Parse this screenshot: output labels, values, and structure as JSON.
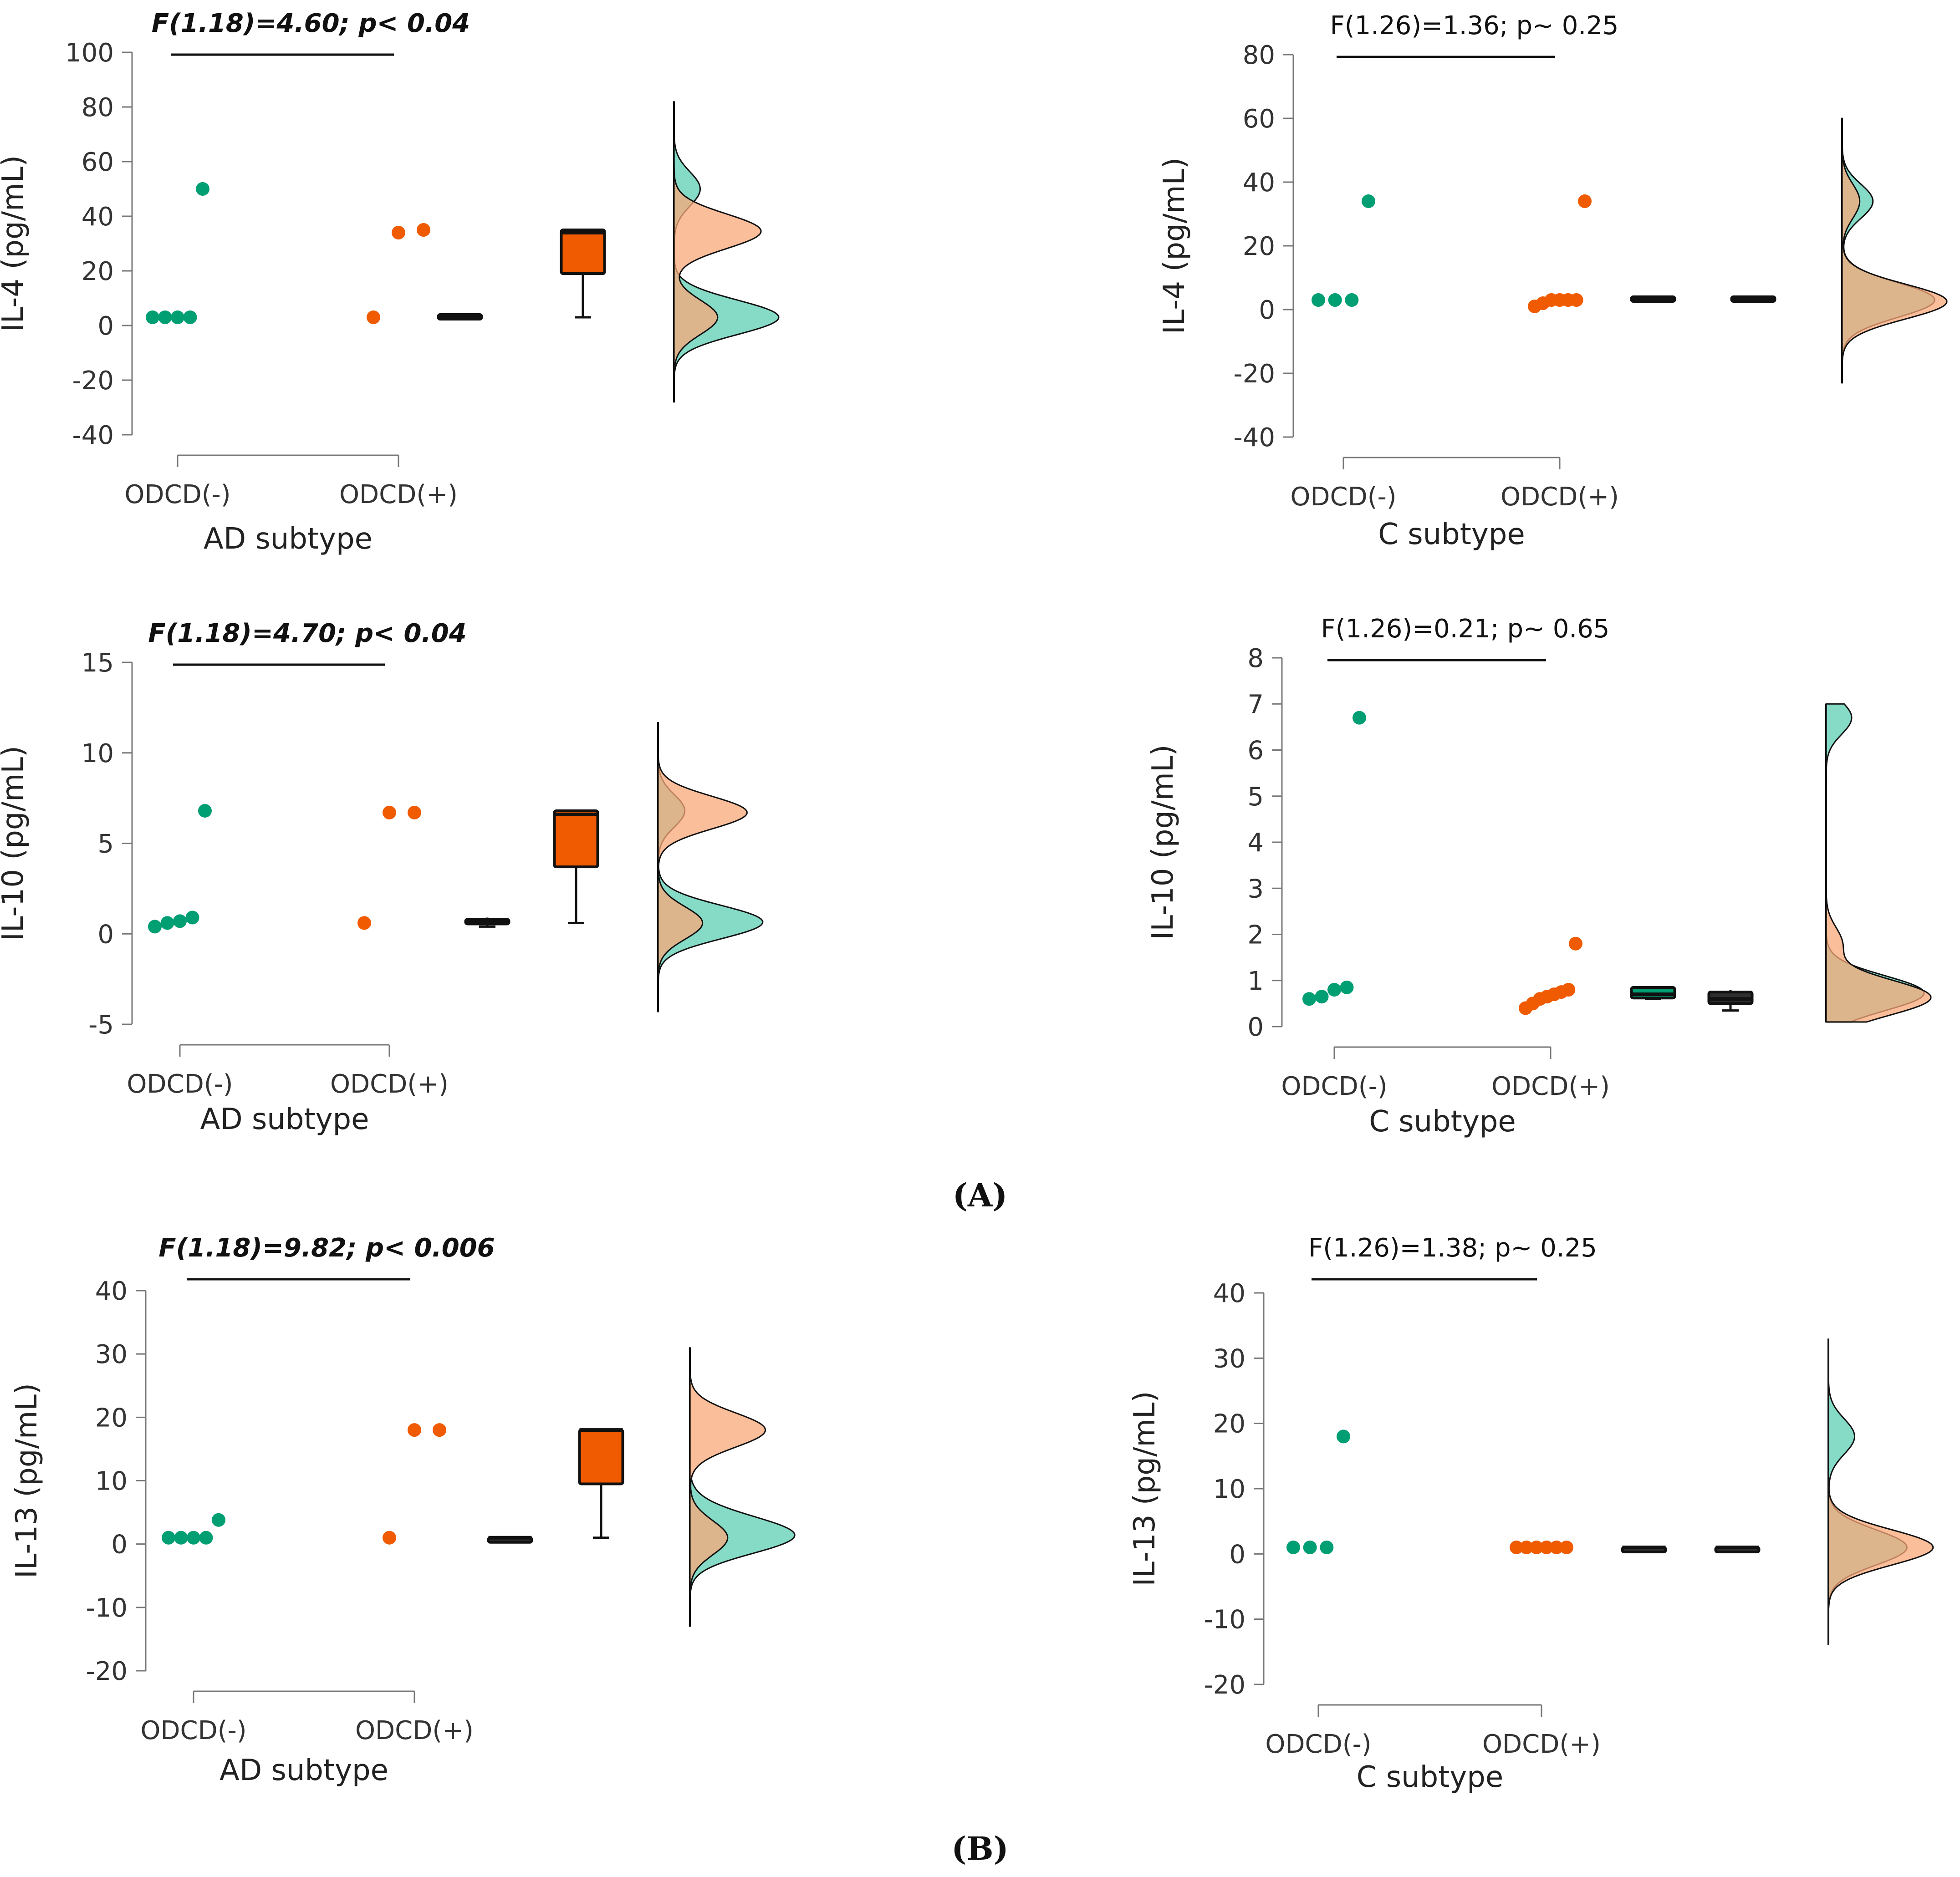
{
  "colors": {
    "odcd_neg": "#009e73",
    "odcd_pos": "#f05a00",
    "density_neg": "#5ecfb4",
    "density_pos": "#f9a879",
    "density_overlap": "#a88750",
    "box_dark": "#2e2e2e"
  },
  "panel_labels": [
    "(A)",
    "(B)"
  ],
  "chart_data": [
    {
      "type": "raincloud",
      "ylabel": "IL-4 (pg/mL)",
      "xlabel": "AD subtype",
      "categories": [
        "ODCD(-)",
        "ODCD(+)"
      ],
      "stat_text": "F(1.18)=4.60; p< 0.04",
      "stat_bold": true,
      "ylim": [
        -40,
        100
      ],
      "yticks": [
        -40,
        -20,
        0,
        20,
        40,
        60,
        80,
        100
      ],
      "series": [
        {
          "points": [
            3,
            3,
            3,
            3,
            50
          ],
          "box": [
            3,
            3,
            3,
            4,
            4
          ]
        },
        {
          "points": [
            3,
            34,
            35
          ],
          "box": [
            3,
            19,
            34,
            35,
            35
          ]
        }
      ],
      "density_range": [
        -28,
        82
      ]
    },
    {
      "type": "raincloud",
      "ylabel": "IL-4 (pg/mL)",
      "xlabel": "C subtype",
      "categories": [
        "ODCD(-)",
        "ODCD(+)"
      ],
      "stat_text": "F(1.26)=1.36; p~ 0.25",
      "stat_bold": false,
      "ylim": [
        -40,
        80
      ],
      "yticks": [
        -40,
        -20,
        0,
        20,
        40,
        60,
        80
      ],
      "series": [
        {
          "points": [
            3,
            3,
            3,
            34
          ],
          "box": [
            3,
            3,
            3,
            4,
            4
          ]
        },
        {
          "points": [
            1,
            2,
            3,
            3,
            3,
            3,
            34
          ],
          "box": [
            3,
            3,
            3,
            4,
            4
          ]
        }
      ],
      "density_range": [
        -23,
        60
      ]
    },
    {
      "type": "raincloud",
      "ylabel": "IL-10 (pg/mL)",
      "xlabel": "AD subtype",
      "categories": [
        "ODCD(-)",
        "ODCD(+)"
      ],
      "stat_text": "F(1.18)=4.70; p< 0.04",
      "stat_bold": true,
      "ylim": [
        -5,
        15
      ],
      "yticks": [
        -5,
        0,
        5,
        10,
        15
      ],
      "series": [
        {
          "points": [
            0.4,
            0.6,
            0.7,
            0.9,
            6.8
          ],
          "box": [
            0.4,
            0.6,
            0.7,
            0.8,
            0.9
          ]
        },
        {
          "points": [
            0.6,
            6.7,
            6.7
          ],
          "box": [
            0.6,
            3.7,
            6.6,
            6.8,
            6.8
          ]
        }
      ],
      "density_range": [
        -4.3,
        11.7
      ]
    },
    {
      "type": "raincloud",
      "ylabel": "IL-10 (pg/mL)",
      "xlabel": "C subtype",
      "categories": [
        "ODCD(-)",
        "ODCD(+)"
      ],
      "stat_text": "F(1.26)=0.21; p~ 0.65",
      "stat_bold": false,
      "ylim": [
        0,
        8
      ],
      "yticks": [
        0,
        1,
        2,
        3,
        4,
        5,
        6,
        7,
        8
      ],
      "series": [
        {
          "points": [
            0.6,
            0.65,
            0.8,
            0.85,
            6.7
          ],
          "box": [
            0.6,
            0.62,
            0.7,
            0.85,
            0.85
          ]
        },
        {
          "points": [
            0.4,
            0.5,
            0.6,
            0.65,
            0.7,
            0.75,
            0.8,
            1.8
          ],
          "box": [
            0.35,
            0.5,
            0.6,
            0.75,
            0.8
          ]
        }
      ],
      "density_range": [
        0.1,
        7.0
      ]
    },
    {
      "type": "raincloud",
      "ylabel": "IL-13 (pg/mL)",
      "xlabel": "AD subtype",
      "categories": [
        "ODCD(-)",
        "ODCD(+)"
      ],
      "stat_text": "F(1.18)=9.82; p< 0.006",
      "stat_bold": true,
      "ylim": [
        -20,
        40
      ],
      "yticks": [
        -20,
        -10,
        0,
        10,
        20,
        30,
        40
      ],
      "series": [
        {
          "points": [
            1,
            1,
            1,
            1,
            3.8
          ],
          "box": [
            1,
            1,
            1,
            1,
            1
          ]
        },
        {
          "points": [
            1,
            18,
            18
          ],
          "box": [
            1,
            9.5,
            18,
            18,
            18
          ]
        }
      ],
      "density_range": [
        -13,
        31
      ]
    },
    {
      "type": "raincloud",
      "ylabel": "IL-13 (pg/mL)",
      "xlabel": "C subtype",
      "categories": [
        "ODCD(-)",
        "ODCD(+)"
      ],
      "stat_text": "F(1.26)=1.38; p~ 0.25",
      "stat_bold": false,
      "ylim": [
        -20,
        40
      ],
      "yticks": [
        -20,
        -10,
        0,
        10,
        20,
        30,
        40
      ],
      "series": [
        {
          "points": [
            1,
            1,
            1,
            18
          ],
          "box": [
            1,
            1,
            1,
            1,
            1
          ]
        },
        {
          "points": [
            1,
            1,
            1,
            1,
            1,
            1
          ],
          "box": [
            1,
            1,
            1,
            1,
            1
          ]
        }
      ],
      "density_range": [
        -14,
        33
      ]
    }
  ]
}
